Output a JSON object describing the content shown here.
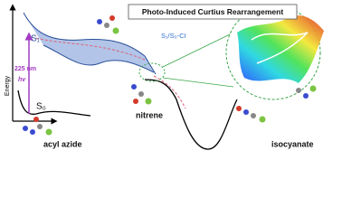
{
  "title": "Photo-Induced Curtius Rearrangement",
  "axis_label": "Energy",
  "states": {
    "s1": "S₁",
    "s0": "S₀",
    "ci": "S₁/S₀-CI"
  },
  "excitation": {
    "wavelength": "225 nm",
    "symbol": "hv"
  },
  "species": {
    "reactant": "acyl azide",
    "intermediate": "nitrene",
    "product": "isocyanate"
  }
}
